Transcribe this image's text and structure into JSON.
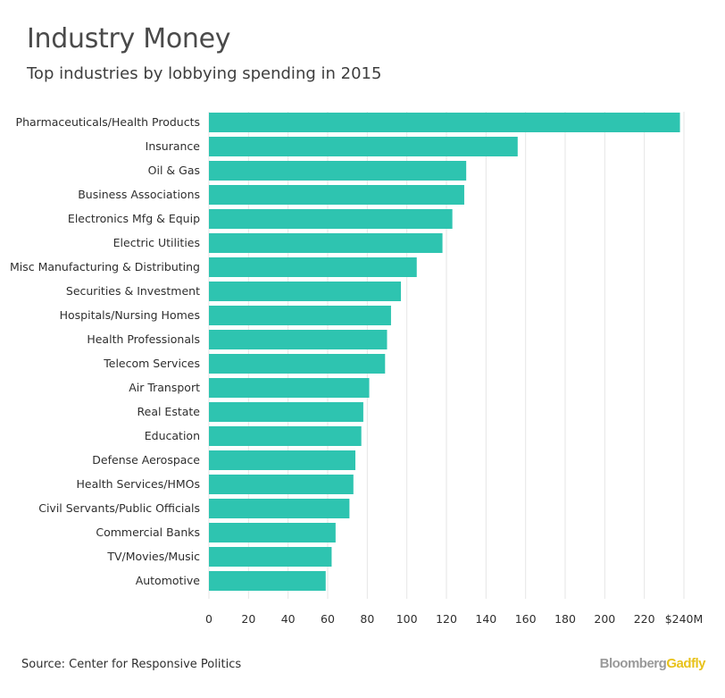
{
  "header": {
    "title": "Industry Money",
    "subtitle": "Top industries by lobbying spending in 2015"
  },
  "footer": {
    "source": "Source: Center for Responsive Politics",
    "brand_part1": "Bloomberg",
    "brand_part2": "Gadfly"
  },
  "colors": {
    "bar": "#2ec4b0",
    "brand_gray": "#9a9a9a",
    "brand_yellow": "#e8c21a"
  },
  "chart_data": {
    "type": "bar",
    "orientation": "horizontal",
    "categories": [
      "Pharmaceuticals/Health Products",
      "Insurance",
      "Oil & Gas",
      "Business Associations",
      "Electronics Mfg & Equip",
      "Electric Utilities",
      "Misc Manufacturing & Distributing",
      "Securities & Investment",
      "Hospitals/Nursing Homes",
      "Health Professionals",
      "Telecom Services",
      "Air Transport",
      "Real Estate",
      "Education",
      "Defense Aerospace",
      "Health Services/HMOs",
      "Civil Servants/Public Officials",
      "Commercial Banks",
      "TV/Movies/Music",
      "Automotive"
    ],
    "values": [
      238,
      156,
      130,
      129,
      123,
      118,
      105,
      97,
      92,
      90,
      89,
      81,
      78,
      77,
      74,
      73,
      71,
      64,
      62,
      59
    ],
    "xlim": [
      0,
      240
    ],
    "ticks": [
      0,
      20,
      40,
      60,
      80,
      100,
      120,
      140,
      160,
      180,
      200,
      220,
      240
    ],
    "tick_labels": [
      "0",
      "20",
      "40",
      "60",
      "80",
      "100",
      "120",
      "140",
      "160",
      "180",
      "200",
      "220",
      "$240M"
    ],
    "grid": true
  }
}
